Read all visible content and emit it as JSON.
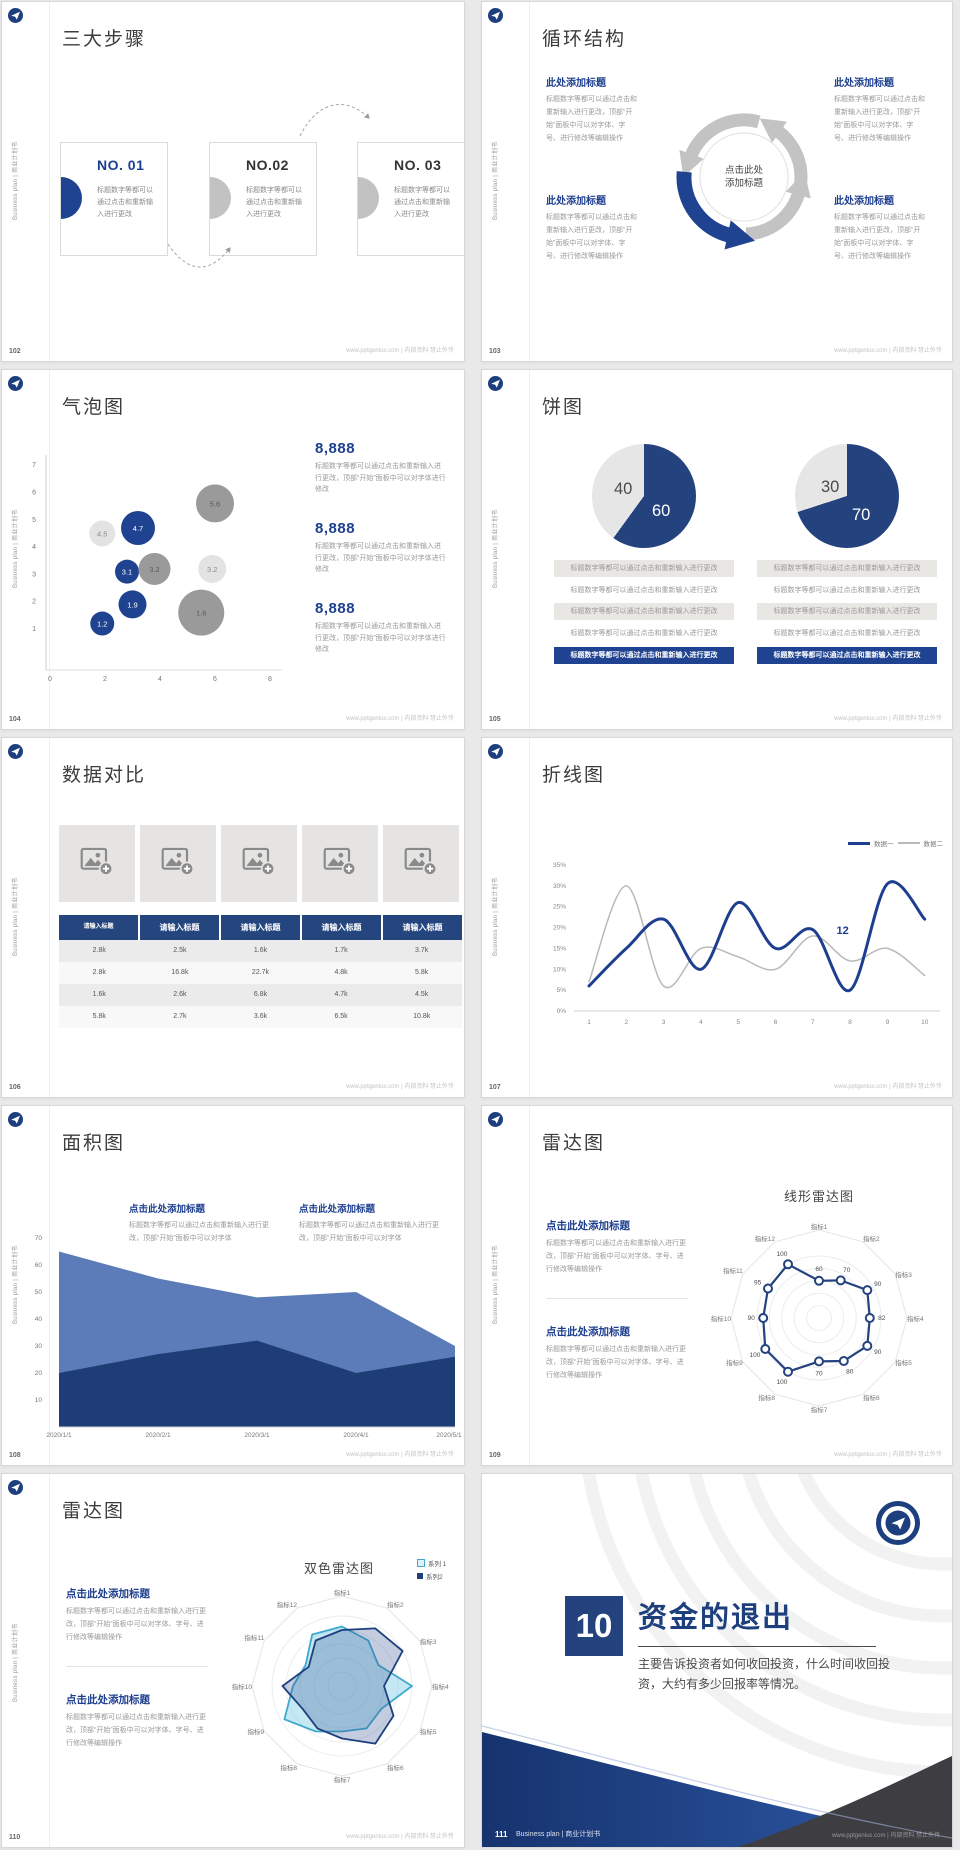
{
  "common": {
    "sidebar_text": "Business plan | 商业计划书",
    "footer_site": "www.pptgenius.com | 内部资料 禁止外传",
    "accent_blue": "#1f4390",
    "navy": "#24427e",
    "grey": "#c2c2c2"
  },
  "slides": {
    "s102": {
      "page_num": "102",
      "title": "三大步骤",
      "cards": [
        {
          "no": "NO. 01",
          "accent": "blue",
          "body": "标题数字等都可以通过点击和重新输入进行更改"
        },
        {
          "no": "NO.02",
          "accent": "grey",
          "body": "标题数字等都可以通过点击和重新输入进行更改"
        },
        {
          "no": "NO. 03",
          "accent": "grey",
          "body": "标题数字等都可以通过点击和重新输入进行更改"
        }
      ]
    },
    "s103": {
      "page_num": "103",
      "title": "循环结构",
      "center_lines": [
        "点击此处",
        "添加标题"
      ],
      "block_title": "此处添加标题",
      "block_body": "标题数字等都可以通过点击和重新输入进行更改，顶部“开始”面板中可以对字体、字号、进行修改等编辑操作"
    },
    "s104": {
      "page_num": "104",
      "title": "气泡图",
      "stats": [
        {
          "value": "8,888",
          "body": "标题数字等都可以通过点击和重新输入进行更改，顶部“开始”面板中可以对字体进行修改"
        },
        {
          "value": "8,888",
          "body": "标题数字等都可以通过点击和重新输入进行更改，顶部“开始”面板中可以对字体进行修改"
        },
        {
          "value": "8,888",
          "body": "标题数字等都可以通过点击和重新输入进行更改，顶部“开始”面板中可以对字体进行修改"
        }
      ]
    },
    "s105": {
      "page_num": "105",
      "title": "饼图",
      "row_text": "标题数字等都可以通过点击和重新输入进行更改"
    },
    "s106": {
      "page_num": "106",
      "title": "数据对比"
    },
    "s107": {
      "page_num": "107",
      "title": "折线图"
    },
    "s108": {
      "page_num": "108",
      "title": "面积图",
      "block_title": "点击此处添加标题",
      "block_body": "标题数字等都可以通过点击和重新输入进行更改，顶部“开始”面板中可以对字体"
    },
    "s109": {
      "page_num": "109",
      "title": "雷达图",
      "block_title": "点击此处添加标题",
      "block_body": "标题数字等都可以通过点击和重新输入进行更改，顶部“开始”面板中可以对字体、字号、进行修改等编辑操作"
    },
    "s110": {
      "page_num": "110",
      "title": "雷达图",
      "block_title": "点击此处添加标题",
      "block_body": "标题数字等都可以通过点击和重新输入进行更改，顶部“开始”面板中可以对字体、字号、进行修改等编辑操作"
    },
    "s111": {
      "page_num": "111",
      "chapter_number": "10",
      "title": "资金的退出",
      "body": "主要告诉投资者如何收回投资，什么时间收回投资，大约有多少回报率等情况。",
      "footer_brand": "Business plan | 商业计划书"
    }
  },
  "chart_data": [
    {
      "id": "bubble-104",
      "slide": "104",
      "type": "scatter",
      "title": "气泡图",
      "x_ticks": [
        0,
        2,
        4,
        6,
        8
      ],
      "y_ticks": [
        1,
        2,
        3,
        4,
        5,
        6,
        7
      ],
      "points": [
        {
          "x": 1.9,
          "y": 4.5,
          "r": 13,
          "series": "light",
          "label": "4.5"
        },
        {
          "x": 3.2,
          "y": 4.7,
          "r": 17,
          "series": "blue",
          "label": "4.7"
        },
        {
          "x": 6.0,
          "y": 5.6,
          "r": 19,
          "series": "grey",
          "label": "5.6"
        },
        {
          "x": 2.8,
          "y": 3.1,
          "r": 12,
          "series": "blue",
          "label": "3.1"
        },
        {
          "x": 3.8,
          "y": 3.2,
          "r": 16,
          "series": "grey",
          "label": "3.2"
        },
        {
          "x": 5.9,
          "y": 3.2,
          "r": 14,
          "series": "light",
          "label": "3.2"
        },
        {
          "x": 3.0,
          "y": 1.9,
          "r": 14,
          "series": "blue",
          "label": "1.9"
        },
        {
          "x": 1.9,
          "y": 1.2,
          "r": 12,
          "series": "blue",
          "label": "1.2"
        },
        {
          "x": 5.5,
          "y": 1.6,
          "r": 23,
          "series": "grey",
          "label": "1.6"
        }
      ],
      "colors": {
        "blue": "#1f4390",
        "grey": "#9a9a9a",
        "light": "#e3e3e3"
      }
    },
    {
      "id": "pies-105",
      "slide": "105",
      "type": "pie",
      "pies": [
        {
          "slices": [
            {
              "label": "60",
              "value": 60,
              "color": "#24437e"
            },
            {
              "label": "40",
              "value": 40,
              "color": "#e6e6e6"
            }
          ]
        },
        {
          "slices": [
            {
              "label": "70",
              "value": 70,
              "color": "#24437e"
            },
            {
              "label": "30",
              "value": 30,
              "color": "#e6e6e6"
            }
          ]
        }
      ]
    },
    {
      "id": "table-106",
      "slide": "106",
      "type": "table",
      "headers": [
        "请输入标题",
        "请输入标题",
        "请输入标题",
        "请输入标题",
        "请输入标题"
      ],
      "rows": [
        [
          "2.8k",
          "2.5k",
          "1.6k",
          "1.7k",
          "3.7k"
        ],
        [
          "2.8k",
          "16.8k",
          "22.7k",
          "4.8k",
          "5.8k"
        ],
        [
          "1.6k",
          "2.6k",
          "6.8k",
          "4.7k",
          "4.5k"
        ],
        [
          "5.8k",
          "2.7k",
          "3.6k",
          "6.5k",
          "10.8k"
        ]
      ]
    },
    {
      "id": "line-107",
      "slide": "107",
      "type": "line",
      "x": [
        1,
        2,
        3,
        4,
        5,
        6,
        7,
        8,
        9,
        10
      ],
      "y_ticks": [
        "0%",
        "5%",
        "10%",
        "15%",
        "20%",
        "25%",
        "30%",
        "35%"
      ],
      "ylim": [
        0,
        35
      ],
      "legend_position": "top-right",
      "series": [
        {
          "name": "数据一",
          "color": "#1e3f8f",
          "width": 3,
          "values": [
            6,
            15,
            22,
            10,
            26,
            15,
            19.5,
            5,
            30.5,
            22
          ]
        },
        {
          "name": "数据二",
          "color": "#b9b9b9",
          "width": 1.5,
          "values": [
            7,
            30,
            6,
            15,
            13,
            10,
            18,
            12,
            15,
            8.5
          ]
        }
      ],
      "annotation": {
        "text": "12",
        "x": 7.8,
        "y": 18.5
      }
    },
    {
      "id": "area-108",
      "slide": "108",
      "type": "area",
      "categories": [
        "2020/1/1",
        "2020/2/1",
        "2020/3/1",
        "2020/4/1",
        "2020/5/1"
      ],
      "y_ticks": [
        10,
        20,
        30,
        40,
        50,
        60,
        70
      ],
      "ylim": [
        0,
        70
      ],
      "series": [
        {
          "name": "背景系列",
          "color": "#5b7cb8",
          "values": [
            65,
            55,
            48,
            50,
            30
          ]
        },
        {
          "name": "前景系列",
          "color": "#1e3d77",
          "values": [
            20,
            27,
            32,
            20,
            26
          ]
        }
      ]
    },
    {
      "id": "radar-109",
      "slide": "109",
      "type": "radar",
      "title": "线形雷达图",
      "labels": [
        "指标1",
        "指标2",
        "指标3",
        "指标4",
        "指标5",
        "指标6",
        "指标7",
        "指标8",
        "指标9",
        "指标10",
        "指标11",
        "指标12"
      ],
      "max": 100,
      "series": [
        {
          "name": "数据",
          "color": "#24427e",
          "values": [
            60,
            70,
            90,
            82,
            90,
            80,
            70,
            100,
            100,
            90,
            95,
            100
          ],
          "show_values": true
        }
      ]
    },
    {
      "id": "radar-110",
      "slide": "110",
      "type": "radar",
      "title": "双色雷达图",
      "labels": [
        "指标1",
        "指标2",
        "指标3",
        "指标4",
        "指标5",
        "指标6",
        "指标7",
        "指标8",
        "指标9",
        "指标10",
        "指标11",
        "指标12"
      ],
      "max": 100,
      "legend": [
        "系列 1",
        "系列2"
      ],
      "series": [
        {
          "name": "系列 1",
          "color": "#3fa9cc",
          "fill": "rgba(125,205,230,0.45)",
          "values": [
            85,
            75,
            60,
            100,
            65,
            70,
            65,
            75,
            95,
            70,
            60,
            85
          ]
        },
        {
          "name": "系列2",
          "color": "#1d3f7e",
          "fill": "rgba(60,90,150,0.30)",
          "values": [
            80,
            95,
            100,
            60,
            85,
            95,
            75,
            70,
            65,
            85,
            55,
            75
          ]
        }
      ]
    }
  ]
}
